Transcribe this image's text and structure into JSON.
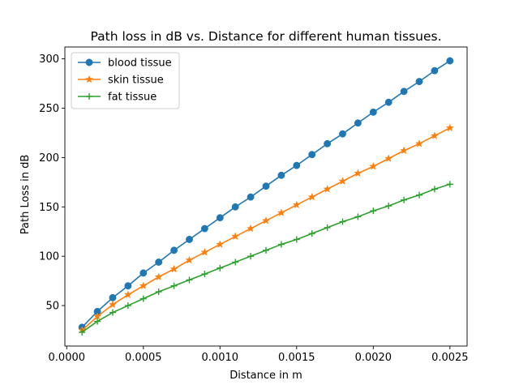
{
  "chart_data": {
    "type": "line",
    "title": "Path loss in dB vs. Distance for different human tissues.",
    "xlabel": "Distance in m",
    "ylabel": "Path Loss in dB",
    "xlim": [
      -1.2e-05,
      0.002612
    ],
    "ylim": [
      9,
      312
    ],
    "xticks": [
      0.0,
      0.0005,
      0.001,
      0.0015,
      0.002,
      0.0025
    ],
    "xtick_labels": [
      "0.0000",
      "0.0005",
      "0.0010",
      "0.0015",
      "0.0020",
      "0.0025"
    ],
    "yticks": [
      50,
      100,
      150,
      200,
      250,
      300
    ],
    "ytick_labels": [
      "50",
      "100",
      "150",
      "200",
      "250",
      "300"
    ],
    "grid": false,
    "legend_position": "top-left",
    "x": [
      0.0001,
      0.0002,
      0.0003,
      0.0004,
      0.0005,
      0.0006,
      0.0007,
      0.0008,
      0.0009,
      0.001,
      0.0011,
      0.0012,
      0.0013,
      0.0014,
      0.0015,
      0.0016,
      0.0017,
      0.0018,
      0.0019,
      0.002,
      0.0021,
      0.0022,
      0.0023,
      0.0024,
      0.0025
    ],
    "series": [
      {
        "name": "blood tissue",
        "color": "#1f77b4",
        "marker": "circle",
        "values": [
          28,
          44,
          58,
          70,
          83,
          94,
          106,
          117,
          128,
          139,
          150,
          160,
          171,
          182,
          192,
          203,
          214,
          224,
          235,
          246,
          256,
          267,
          277,
          288,
          298
        ]
      },
      {
        "name": "skin tissue",
        "color": "#ff7f0e",
        "marker": "star",
        "values": [
          25,
          39,
          51,
          61,
          70,
          79,
          87,
          96,
          104,
          112,
          120,
          128,
          136,
          144,
          152,
          160,
          168,
          176,
          184,
          191,
          199,
          207,
          214,
          222,
          230
        ]
      },
      {
        "name": "fat tissue",
        "color": "#2ca02c",
        "marker": "plus",
        "values": [
          23,
          34,
          43,
          50,
          57,
          64,
          70,
          76,
          82,
          88,
          94,
          100,
          106,
          112,
          117,
          123,
          129,
          135,
          140,
          146,
          151,
          157,
          162,
          168,
          173
        ]
      }
    ]
  }
}
